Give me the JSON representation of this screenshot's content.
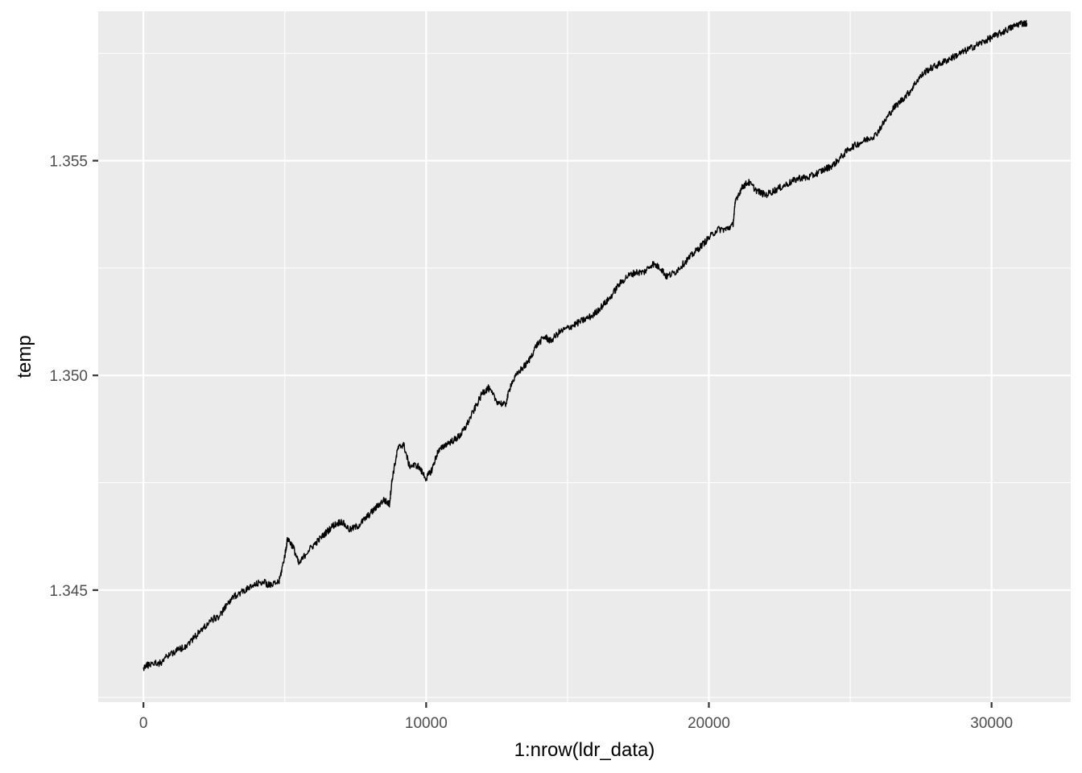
{
  "chart_data": {
    "type": "line",
    "title": "",
    "xlabel": "1:nrow(ldr_data)",
    "ylabel": "temp",
    "xlim": [
      -1600,
      32800
    ],
    "ylim": [
      1.34239,
      1.35848
    ],
    "x_ticks": [
      0,
      10000,
      20000,
      30000
    ],
    "x_tick_labels": [
      "0",
      "10000",
      "20000",
      "30000"
    ],
    "y_ticks": [
      1.345,
      1.35,
      1.355
    ],
    "y_tick_labels": [
      "1.345",
      "1.350",
      "1.355"
    ],
    "grid": true,
    "legend": "none",
    "colors": {
      "panel": "#ebebeb",
      "grid": "#ffffff",
      "line": "#000000",
      "tick": "#333333"
    },
    "series": [
      {
        "x": [
          0,
          300,
          600,
          900,
          1200,
          1500,
          1800,
          2100,
          2400,
          2700,
          3000,
          3300,
          3600,
          3900,
          4200,
          4500,
          4800,
          5000,
          5100,
          5300,
          5500,
          5800,
          6100,
          6400,
          6700,
          7000,
          7300,
          7600,
          7900,
          8200,
          8500,
          8700,
          8800,
          9000,
          9200,
          9400,
          9700,
          10000,
          10200,
          10400,
          10700,
          11000,
          11200,
          11400,
          11700,
          12000,
          12200,
          12500,
          12800,
          13000,
          13300,
          13600,
          13900,
          14200,
          14400,
          14700,
          15000,
          15300,
          15600,
          15900,
          16200,
          16500,
          16800,
          17100,
          17400,
          17700,
          18000,
          18300,
          18500,
          18800,
          19100,
          19400,
          19700,
          20000,
          20300,
          20600,
          20850,
          20950,
          21200,
          21400,
          21700,
          22000,
          22300,
          22600,
          22900,
          23200,
          23500,
          23800,
          24100,
          24400,
          24700,
          25000,
          25300,
          25600,
          25900,
          26200,
          26500,
          26800,
          27100,
          27400,
          27700,
          28000,
          28300,
          28600,
          28900,
          29200,
          29500,
          29800,
          30100,
          30400,
          30700,
          31000,
          31250
        ],
        "y": [
          1.3432,
          1.3433,
          1.3433,
          1.3435,
          1.3436,
          1.3437,
          1.3439,
          1.3441,
          1.3443,
          1.3444,
          1.3447,
          1.3449,
          1.345,
          1.3451,
          1.3452,
          1.3451,
          1.3452,
          1.3458,
          1.3462,
          1.346,
          1.3456,
          1.3459,
          1.3461,
          1.3463,
          1.3465,
          1.3466,
          1.3464,
          1.3465,
          1.3467,
          1.3469,
          1.3471,
          1.347,
          1.3476,
          1.3483,
          1.3484,
          1.3479,
          1.3479,
          1.3476,
          1.3478,
          1.3482,
          1.3484,
          1.3485,
          1.3486,
          1.3488,
          1.3492,
          1.3496,
          1.3497,
          1.3494,
          1.3493,
          1.3498,
          1.3501,
          1.3503,
          1.3507,
          1.3509,
          1.3508,
          1.351,
          1.3511,
          1.3512,
          1.3513,
          1.3514,
          1.3516,
          1.3518,
          1.3521,
          1.3523,
          1.3524,
          1.3524,
          1.3526,
          1.3525,
          1.3523,
          1.3524,
          1.3526,
          1.3528,
          1.353,
          1.3532,
          1.3534,
          1.3534,
          1.3535,
          1.3541,
          1.3544,
          1.3545,
          1.3543,
          1.3542,
          1.3543,
          1.3544,
          1.3545,
          1.3546,
          1.3546,
          1.3547,
          1.3548,
          1.3549,
          1.3551,
          1.3553,
          1.3554,
          1.3555,
          1.3556,
          1.3559,
          1.3562,
          1.3564,
          1.3566,
          1.3569,
          1.3571,
          1.3572,
          1.3573,
          1.3574,
          1.3575,
          1.3576,
          1.3577,
          1.3578,
          1.3579,
          1.358,
          1.3581,
          1.3582,
          1.3582
        ]
      }
    ]
  }
}
